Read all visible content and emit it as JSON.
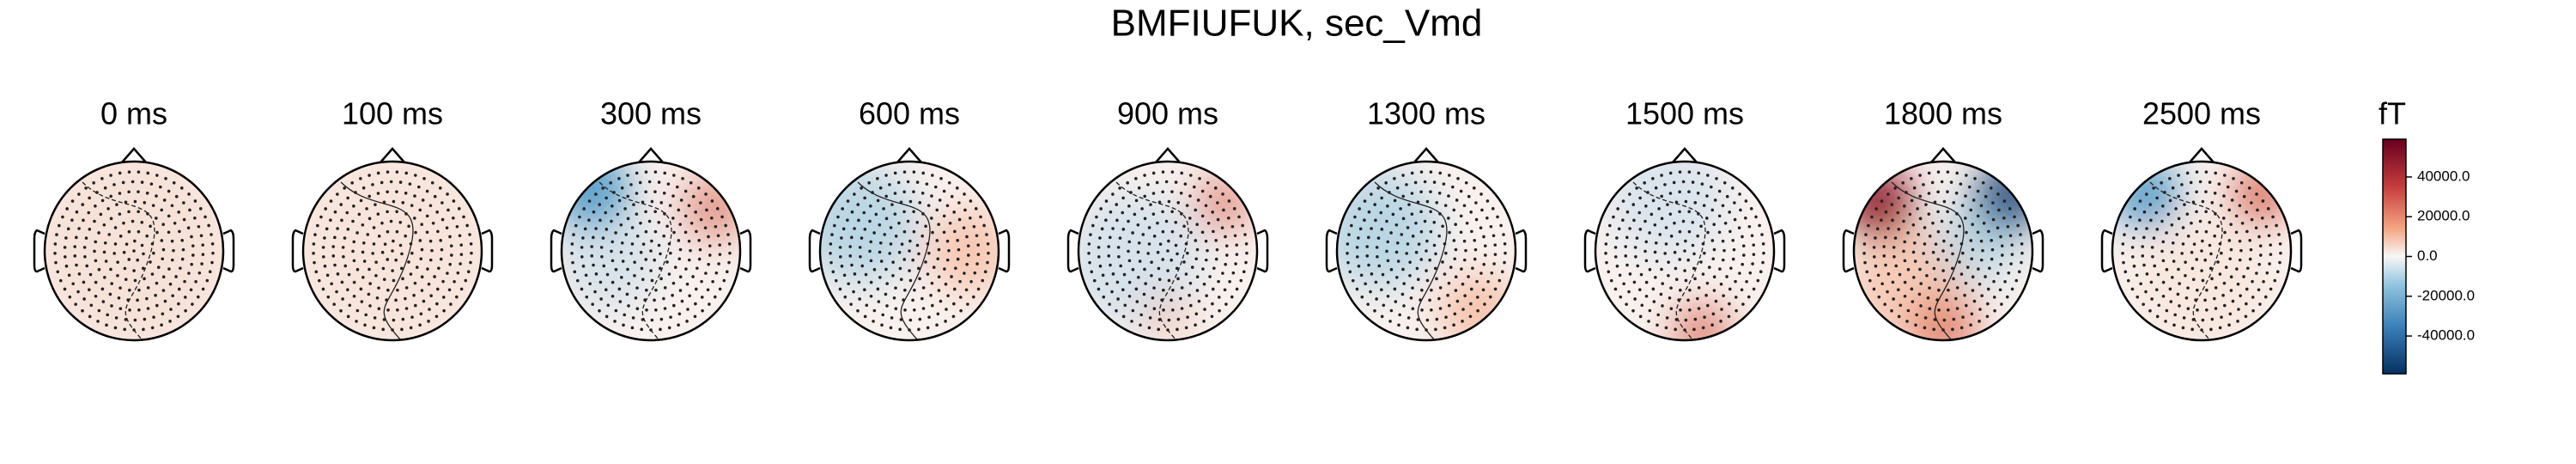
{
  "chart_data": {
    "type": "topomap",
    "title": "BMFIUFUK, sec_Vmd",
    "panels": [
      {
        "title": "0 ms"
      },
      {
        "title": "100 ms"
      },
      {
        "title": "300 ms"
      },
      {
        "title": "600 ms"
      },
      {
        "title": "900 ms"
      },
      {
        "title": "1300 ms"
      },
      {
        "title": "1500 ms"
      },
      {
        "title": "1800 ms"
      },
      {
        "title": "2500 ms"
      }
    ],
    "colorbar": {
      "label": "fT",
      "colormap": "RdBu_r",
      "ylim": [
        -59000,
        59000
      ],
      "yticks": [
        {
          "value": 40000,
          "label": "40000.0"
        },
        {
          "value": 20000,
          "label": "20000.0"
        },
        {
          "value": 0,
          "label": "0.0"
        },
        {
          "value": -20000,
          "label": "-20000.0"
        },
        {
          "value": -40000,
          "label": "-40000.0"
        }
      ]
    }
  }
}
